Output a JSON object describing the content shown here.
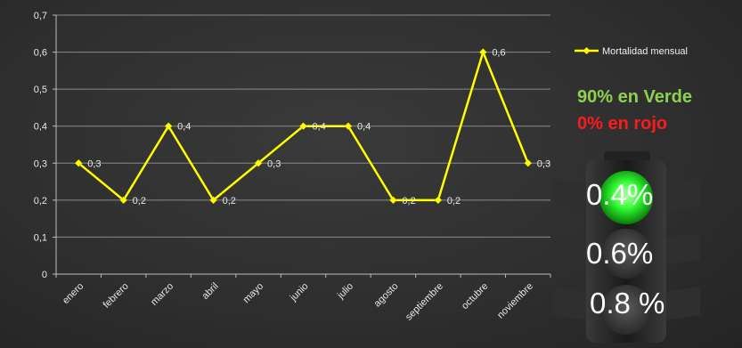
{
  "chart_data": {
    "type": "line",
    "categories": [
      "enero",
      "febrero",
      "marzo",
      "abril",
      "mayo",
      "junio",
      "julio",
      "agosto",
      "septiembre",
      "octubre",
      "noviembre"
    ],
    "series": [
      {
        "name": "Mortalidad mensual",
        "values": [
          0.3,
          0.2,
          0.4,
          0.2,
          0.3,
          0.4,
          0.4,
          0.2,
          0.2,
          0.6,
          0.3
        ],
        "color": "#ffff00"
      }
    ],
    "data_labels": [
      "0,3",
      "0,2",
      "0,4",
      "0,2",
      "0,3",
      "0,4",
      "0,4",
      "0,2",
      "0,2",
      "0,6",
      "0,3"
    ],
    "y_ticks": [
      "0",
      "0,1",
      "0,2",
      "0,3",
      "0,4",
      "0,5",
      "0,6",
      "0,7"
    ],
    "ylim": [
      0,
      0.7
    ],
    "grid": true,
    "legend_position": "right",
    "title": "",
    "xlabel": "",
    "ylabel": ""
  },
  "summary": {
    "green_text": "90% en Verde",
    "red_text": "0% en rojo",
    "green_color": "#8fd14f",
    "red_color": "#ff1a1a"
  },
  "traffic_light": {
    "labels": [
      "0.4%",
      "0.6%",
      "0.8 %"
    ],
    "active_light": "green",
    "colors": {
      "green": "#33ff33",
      "off": "#444444",
      "housing": "#1c1c1c"
    }
  }
}
